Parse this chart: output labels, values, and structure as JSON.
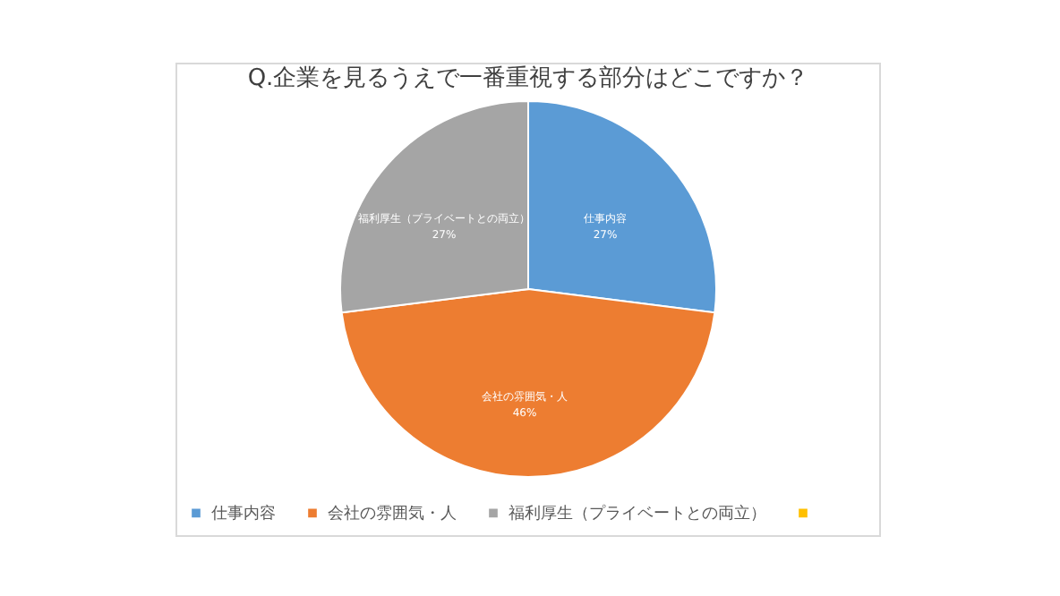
{
  "chart_data": {
    "type": "pie",
    "title": "Q.企業を見るうえで一番重視する部分はどこですか？",
    "categories": [
      "仕事内容",
      "会社の雰囲気・人",
      "福利厚生（プライベートとの両立）",
      null
    ],
    "values": [
      27,
      46,
      27,
      0
    ],
    "colors": [
      "#5b9bd5",
      "#ed7d31",
      "#a5a5a5",
      "#ffc000"
    ],
    "value_labels": [
      "27%",
      "46%",
      "27%",
      null
    ],
    "legend": "bottom"
  }
}
